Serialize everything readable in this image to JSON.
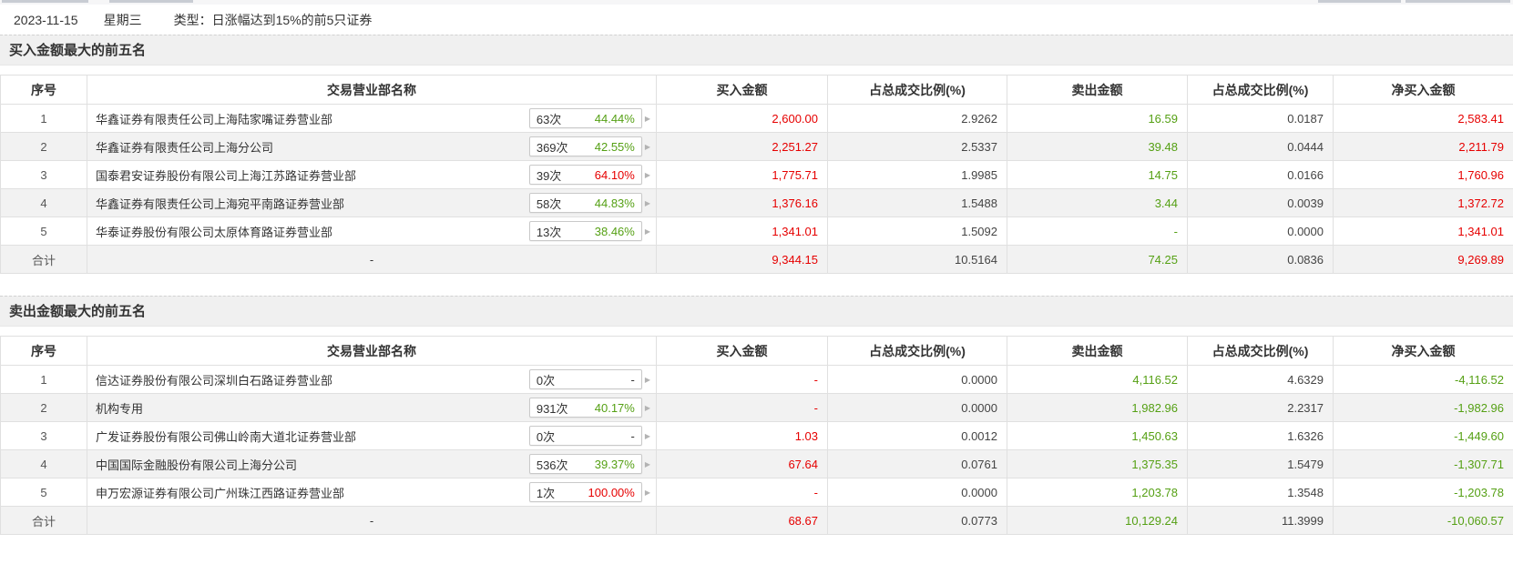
{
  "top": {
    "date": "2023-11-15",
    "weekday": "星期三",
    "type_label": "类型：日涨幅达到15%的前5只证券"
  },
  "sections": {
    "buy_title": "买入金额最大的前五名",
    "sell_title": "卖出金额最大的前五名"
  },
  "columns": {
    "seq": "序号",
    "name": "交易营业部名称",
    "buy": "买入金额",
    "buy_pct": "占总成交比例(%)",
    "sell": "卖出金额",
    "sell_pct": "占总成交比例(%)",
    "net": "净买入金额"
  },
  "colors": {
    "red": "#e60000",
    "green": "#55a014",
    "band_bg": "#f0f0f0",
    "alt_row_bg": "#f2f2f2"
  },
  "chevron": "▶",
  "buy": {
    "total_label": "合计",
    "rows": [
      {
        "seq": "1",
        "name": "华鑫证券有限责任公司上海陆家嘴证券营业部",
        "times": "63次",
        "rate": "44.44%",
        "buy": "2,600.00",
        "buy_pct": "2.9262",
        "sell": "16.59",
        "sell_pct": "0.0187",
        "net": "2,583.41"
      },
      {
        "seq": "2",
        "name": "华鑫证券有限责任公司上海分公司",
        "times": "369次",
        "rate": "42.55%",
        "buy": "2,251.27",
        "buy_pct": "2.5337",
        "sell": "39.48",
        "sell_pct": "0.0444",
        "net": "2,211.79"
      },
      {
        "seq": "3",
        "name": "国泰君安证券股份有限公司上海江苏路证券营业部",
        "times": "39次",
        "rate": "64.10%",
        "buy": "1,775.71",
        "buy_pct": "1.9985",
        "sell": "14.75",
        "sell_pct": "0.0166",
        "net": "1,760.96"
      },
      {
        "seq": "4",
        "name": "华鑫证券有限责任公司上海宛平南路证券营业部",
        "times": "58次",
        "rate": "44.83%",
        "buy": "1,376.16",
        "buy_pct": "1.5488",
        "sell": "3.44",
        "sell_pct": "0.0039",
        "net": "1,372.72"
      },
      {
        "seq": "5",
        "name": "华泰证券股份有限公司太原体育路证券营业部",
        "times": "13次",
        "rate": "38.46%",
        "buy": "1,341.01",
        "buy_pct": "1.5092",
        "sell": "-",
        "sell_pct": "0.0000",
        "net": "1,341.01"
      }
    ],
    "total": {
      "name": "-",
      "buy": "9,344.15",
      "buy_pct": "10.5164",
      "sell": "74.25",
      "sell_pct": "0.0836",
      "net": "9,269.89"
    }
  },
  "sell": {
    "total_label": "合计",
    "rows": [
      {
        "seq": "1",
        "name": "信达证券股份有限公司深圳白石路证券营业部",
        "times": "0次",
        "rate": "-",
        "buy": "-",
        "buy_pct": "0.0000",
        "sell": "4,116.52",
        "sell_pct": "4.6329",
        "net": "-4,116.52"
      },
      {
        "seq": "2",
        "name": "机构专用",
        "times": "931次",
        "rate": "40.17%",
        "buy": "-",
        "buy_pct": "0.0000",
        "sell": "1,982.96",
        "sell_pct": "2.2317",
        "net": "-1,982.96"
      },
      {
        "seq": "3",
        "name": "广发证券股份有限公司佛山岭南大道北证券营业部",
        "times": "0次",
        "rate": "-",
        "buy": "1.03",
        "buy_pct": "0.0012",
        "sell": "1,450.63",
        "sell_pct": "1.6326",
        "net": "-1,449.60"
      },
      {
        "seq": "4",
        "name": "中国国际金融股份有限公司上海分公司",
        "times": "536次",
        "rate": "39.37%",
        "buy": "67.64",
        "buy_pct": "0.0761",
        "sell": "1,375.35",
        "sell_pct": "1.5479",
        "net": "-1,307.71"
      },
      {
        "seq": "5",
        "name": "申万宏源证券有限公司广州珠江西路证券营业部",
        "times": "1次",
        "rate": "100.00%",
        "buy": "-",
        "buy_pct": "0.0000",
        "sell": "1,203.78",
        "sell_pct": "1.3548",
        "net": "-1,203.78"
      }
    ],
    "total": {
      "name": "-",
      "buy": "68.67",
      "buy_pct": "0.0773",
      "sell": "10,129.24",
      "sell_pct": "11.3999",
      "net": "-10,060.57"
    }
  }
}
